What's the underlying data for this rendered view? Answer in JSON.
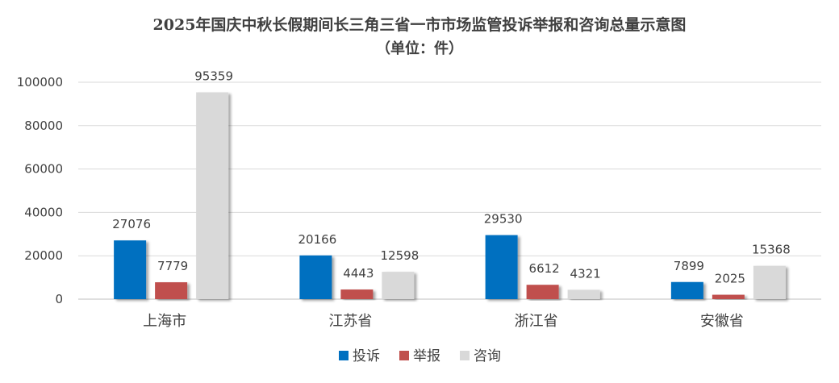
{
  "chart_data": {
    "type": "bar",
    "title": "2025年国庆中秋长假期间长三角三省一市市场监管投诉举报和咨询总量示意图",
    "subtitle": "（单位：件）",
    "categories": [
      "上海市",
      "江苏省",
      "浙江省",
      "安徽省"
    ],
    "series": [
      {
        "name": "投诉",
        "color": "#0070C0",
        "values": [
          27076,
          20166,
          29530,
          7899
        ]
      },
      {
        "name": "举报",
        "color": "#C0504D",
        "values": [
          7779,
          4443,
          6612,
          2025
        ]
      },
      {
        "name": "咨询",
        "color": "#D9D9D9",
        "values": [
          95359,
          12598,
          4321,
          15368
        ]
      }
    ],
    "yticks": [
      0,
      20000,
      40000,
      60000,
      80000,
      100000
    ],
    "ylim": [
      0,
      100000
    ],
    "grid": true,
    "legend": "bottom"
  }
}
